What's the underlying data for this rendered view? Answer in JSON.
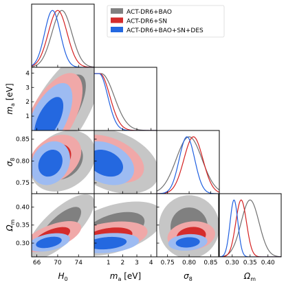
{
  "chart_data": {
    "type": "scatter",
    "subtype": "corner-triangle-plot",
    "parameters": [
      {
        "key": "H0",
        "label": "H",
        "label_sub": "0",
        "range": [
          65,
          77
        ],
        "ticks": [
          66,
          70,
          74
        ],
        "tick_labels": [
          "66",
          "70",
          "74"
        ]
      },
      {
        "key": "ma",
        "label": "m",
        "label_sub": "a",
        "label_unit": " [eV]",
        "range": [
          0,
          4.4
        ],
        "ticks": [
          1,
          2,
          3,
          4
        ],
        "tick_labels": [
          "1",
          "2",
          "3",
          "4"
        ]
      },
      {
        "key": "sigma8",
        "label": "σ",
        "label_sub": "8",
        "range": [
          0.725,
          0.87
        ],
        "ticks": [
          0.75,
          0.8,
          0.85
        ],
        "tick_labels": [
          "0.75",
          "0.80",
          "0.85"
        ]
      },
      {
        "key": "Omegam",
        "label": "Ω",
        "label_sub": "m",
        "range": [
          0.262,
          0.437
        ],
        "ticks": [
          0.3,
          0.35,
          0.4
        ],
        "tick_labels": [
          "0.30",
          "0.35",
          "0.40"
        ]
      }
    ],
    "series": [
      {
        "name": "ACT-DR6+BAO",
        "colors": {
          "line": "#707070",
          "dark": "#808080",
          "light": "#c6c6c6"
        },
        "means": {
          "H0": 70.8,
          "ma": 0.5,
          "sigma8": 0.8,
          "Omegam": 0.35
        },
        "sigmas": {
          "H0": 1.9,
          "ma": 0.9,
          "sigma8": 0.03,
          "Omegam": 0.025
        },
        "pdf_shape": {
          "ma": "decreasing"
        },
        "contours": {
          "H0-ma": {
            "center": [
              70.5,
              1.3
            ],
            "sig": [
              3.2,
              1.7
            ],
            "rho": 0.7
          },
          "H0-sigma8": {
            "center": [
              71.0,
              0.8
            ],
            "sig": [
              2.5,
              0.028
            ],
            "rho": 0.25
          },
          "ma-sigma8": {
            "center": [
              1.3,
              0.8
            ],
            "sig": [
              1.3,
              0.03
            ],
            "rho": -0.35
          },
          "H0-Omegam": {
            "center": [
              70.5,
              0.345
            ],
            "sig": [
              2.6,
              0.036
            ],
            "rho": 0.75
          },
          "ma-Omegam": {
            "center": [
              1.4,
              0.34
            ],
            "sig": [
              1.4,
              0.03
            ],
            "rho": 0.45
          },
          "sigma8-Omegam": {
            "center": [
              0.8,
              0.345
            ],
            "sig": [
              0.028,
              0.035
            ],
            "rho": 0.0
          }
        }
      },
      {
        "name": "ACT-DR6+SN",
        "colors": {
          "line": "#d42020",
          "dark": "#d42c2c",
          "light": "#f0a8a8"
        },
        "means": {
          "H0": 70.0,
          "ma": 0.4,
          "sigma8": 0.81,
          "Omegam": 0.325
        },
        "sigmas": {
          "H0": 1.8,
          "ma": 0.7,
          "sigma8": 0.022,
          "Omegam": 0.015
        },
        "pdf_shape": {
          "ma": "decreasing"
        },
        "contours": {
          "H0-ma": {
            "center": [
              69.0,
              1.0
            ],
            "sig": [
              2.3,
              1.2
            ],
            "rho": 0.6
          },
          "H0-sigma8": {
            "center": [
              69.5,
              0.805
            ],
            "sig": [
              2.0,
              0.022
            ],
            "rho": 0.3
          },
          "ma-sigma8": {
            "center": [
              1.0,
              0.805
            ],
            "sig": [
              1.0,
              0.022
            ],
            "rho": -0.4
          },
          "H0-Omegam": {
            "center": [
              69.0,
              0.318
            ],
            "sig": [
              2.2,
              0.017
            ],
            "rho": 0.6
          },
          "ma-Omegam": {
            "center": [
              1.0,
              0.317
            ],
            "sig": [
              1.1,
              0.017
            ],
            "rho": 0.35
          },
          "sigma8-Omegam": {
            "center": [
              0.805,
              0.32
            ],
            "sig": [
              0.022,
              0.016
            ],
            "rho": 0.15
          }
        }
      },
      {
        "name": "ACT-DR6+BAO+SN+DES",
        "colors": {
          "line": "#1f5fe0",
          "dark": "#2468e0",
          "light": "#9dbbf2"
        },
        "means": {
          "H0": 69.0,
          "ma": 0.35,
          "sigma8": 0.795,
          "Omegam": 0.305
        },
        "sigmas": {
          "H0": 1.5,
          "ma": 0.6,
          "sigma8": 0.018,
          "Omegam": 0.011
        },
        "pdf_shape": {
          "ma": "decreasing"
        },
        "contours": {
          "H0-ma": {
            "center": [
              68.3,
              0.8
            ],
            "sig": [
              1.8,
              1.0
            ],
            "rho": 0.6
          },
          "H0-sigma8": {
            "center": [
              68.6,
              0.795
            ],
            "sig": [
              1.5,
              0.02
            ],
            "rho": 0.2
          },
          "ma-sigma8": {
            "center": [
              0.8,
              0.795
            ],
            "sig": [
              0.8,
              0.02
            ],
            "rho": -0.3
          },
          "H0-Omegam": {
            "center": [
              68.3,
              0.302
            ],
            "sig": [
              1.6,
              0.01
            ],
            "rho": 0.4
          },
          "ma-Omegam": {
            "center": [
              0.9,
              0.3
            ],
            "sig": [
              0.9,
              0.011
            ],
            "rho": 0.25
          },
          "sigma8-Omegam": {
            "center": [
              0.797,
              0.302
            ],
            "sig": [
              0.018,
              0.009
            ],
            "rho": 0.15
          }
        }
      }
    ],
    "legend_placement": "top-right",
    "grid": false
  }
}
